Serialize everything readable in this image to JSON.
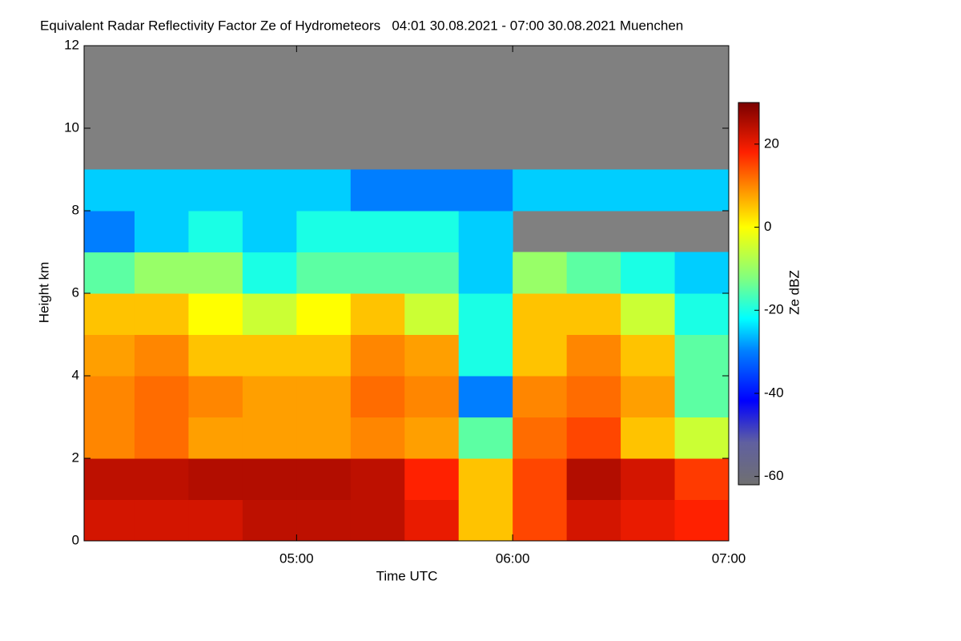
{
  "chart_data": {
    "type": "heatmap",
    "title": "Equivalent Radar Reflectivity Factor Ze of Hydrometeors   04:01 30.08.2021 - 07:00 30.08.2021 Muenchen",
    "xlabel": "Time UTC",
    "ylabel": "Height km",
    "colorbar_label": "Ze dBZ",
    "x": [
      241,
      255,
      270,
      285,
      300,
      315,
      330,
      345,
      360,
      375,
      390,
      405
    ],
    "y": [
      0,
      1,
      2,
      3,
      4,
      5,
      6,
      7,
      8,
      9,
      10,
      11
    ],
    "z": [
      [
        22,
        22,
        22,
        24,
        24,
        24,
        20,
        5,
        15,
        22,
        20,
        18
      ],
      [
        24,
        24,
        25,
        25,
        25,
        24,
        18,
        5,
        15,
        25,
        22,
        16
      ],
      [
        10,
        12,
        8,
        8,
        8,
        10,
        8,
        -15,
        12,
        15,
        5,
        -5
      ],
      [
        10,
        12,
        10,
        8,
        8,
        12,
        10,
        -30,
        10,
        12,
        8,
        -15
      ],
      [
        8,
        10,
        5,
        5,
        5,
        10,
        8,
        -20,
        5,
        10,
        5,
        -15
      ],
      [
        5,
        5,
        0,
        -5,
        0,
        5,
        -5,
        -20,
        5,
        5,
        -5,
        -20
      ],
      [
        -15,
        -10,
        -10,
        -20,
        -15,
        -15,
        -15,
        -25,
        -10,
        -15,
        -20,
        -25
      ],
      [
        -30,
        -25,
        -20,
        -25,
        -20,
        -20,
        -20,
        -25,
        null,
        null,
        null,
        null
      ],
      [
        -25,
        -25,
        -25,
        -25,
        -25,
        -30,
        -30,
        -30,
        -25,
        -25,
        -25,
        -25
      ],
      [
        null,
        null,
        null,
        null,
        null,
        null,
        null,
        null,
        null,
        null,
        null,
        null
      ],
      [
        null,
        null,
        null,
        null,
        null,
        null,
        null,
        null,
        null,
        null,
        null,
        null
      ],
      [
        null,
        null,
        null,
        null,
        null,
        null,
        null,
        null,
        null,
        null,
        null,
        null
      ]
    ],
    "xlim": [
      241,
      420
    ],
    "xticks": [
      {
        "value": 300,
        "label": "05:00"
      },
      {
        "value": 360,
        "label": "06:00"
      },
      {
        "value": 420,
        "label": "07:00"
      }
    ],
    "ylim": [
      0,
      12
    ],
    "yticks": [
      0,
      2,
      4,
      6,
      8,
      10,
      12
    ],
    "clim": [
      -62,
      30
    ],
    "cticks": [
      20,
      0,
      -20,
      -40,
      -60
    ],
    "background_color": "#808080"
  }
}
